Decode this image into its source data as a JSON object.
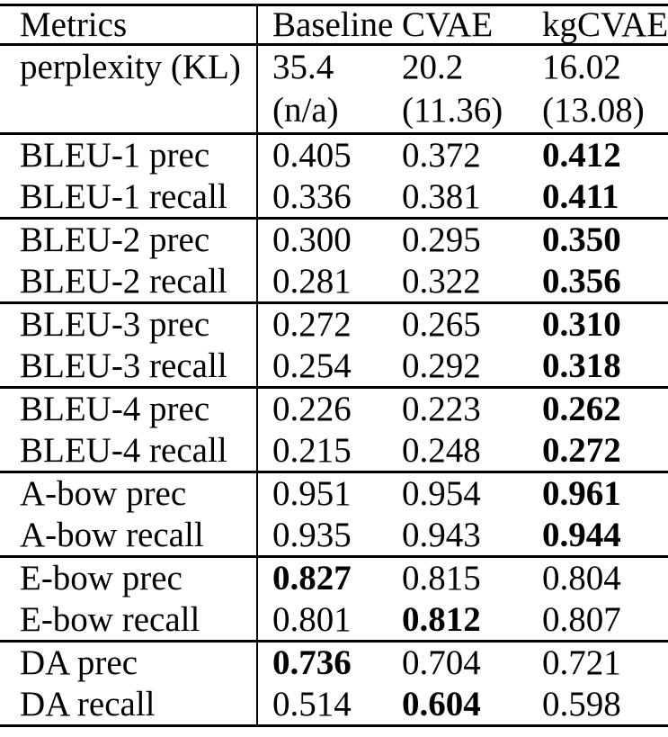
{
  "table": {
    "header": {
      "metric_col": "Metrics",
      "columns": [
        "Baseline",
        "CVAE",
        "kgCVAE"
      ]
    },
    "groups": [
      {
        "name": "perplexity",
        "rows": [
          {
            "metric": "perplexity (KL)",
            "values": [
              "35.4",
              "20.2",
              "16.02"
            ],
            "bold": [
              false,
              false,
              false
            ]
          },
          {
            "metric": "",
            "values": [
              "(n/a)",
              "(11.36)",
              "(13.08)"
            ],
            "bold": [
              false,
              false,
              false
            ]
          }
        ]
      },
      {
        "name": "bleu-1",
        "rows": [
          {
            "metric": "BLEU-1 prec",
            "values": [
              "0.405",
              "0.372",
              "0.412"
            ],
            "bold": [
              false,
              false,
              true
            ]
          },
          {
            "metric": "BLEU-1 recall",
            "values": [
              "0.336",
              "0.381",
              "0.411"
            ],
            "bold": [
              false,
              false,
              true
            ]
          }
        ]
      },
      {
        "name": "bleu-2",
        "rows": [
          {
            "metric": "BLEU-2 prec",
            "values": [
              "0.300",
              "0.295",
              "0.350"
            ],
            "bold": [
              false,
              false,
              true
            ]
          },
          {
            "metric": "BLEU-2 recall",
            "values": [
              "0.281",
              "0.322",
              "0.356"
            ],
            "bold": [
              false,
              false,
              true
            ]
          }
        ]
      },
      {
        "name": "bleu-3",
        "rows": [
          {
            "metric": "BLEU-3 prec",
            "values": [
              "0.272",
              "0.265",
              "0.310"
            ],
            "bold": [
              false,
              false,
              true
            ]
          },
          {
            "metric": "BLEU-3 recall",
            "values": [
              "0.254",
              "0.292",
              "0.318"
            ],
            "bold": [
              false,
              false,
              true
            ]
          }
        ]
      },
      {
        "name": "bleu-4",
        "rows": [
          {
            "metric": "BLEU-4 prec",
            "values": [
              "0.226",
              "0.223",
              "0.262"
            ],
            "bold": [
              false,
              false,
              true
            ]
          },
          {
            "metric": "BLEU-4 recall",
            "values": [
              "0.215",
              "0.248",
              "0.272"
            ],
            "bold": [
              false,
              false,
              true
            ]
          }
        ]
      },
      {
        "name": "a-bow",
        "rows": [
          {
            "metric": "A-bow prec",
            "values": [
              "0.951",
              "0.954",
              "0.961"
            ],
            "bold": [
              false,
              false,
              true
            ]
          },
          {
            "metric": "A-bow recall",
            "values": [
              "0.935",
              "0.943",
              "0.944"
            ],
            "bold": [
              false,
              false,
              true
            ]
          }
        ]
      },
      {
        "name": "e-bow",
        "rows": [
          {
            "metric": "E-bow prec",
            "values": [
              "0.827",
              "0.815",
              "0.804"
            ],
            "bold": [
              true,
              false,
              false
            ]
          },
          {
            "metric": "E-bow recall",
            "values": [
              "0.801",
              "0.812",
              "0.807"
            ],
            "bold": [
              false,
              true,
              false
            ]
          }
        ]
      },
      {
        "name": "da",
        "rows": [
          {
            "metric": "DA prec",
            "values": [
              "0.736",
              "0.704",
              "0.721"
            ],
            "bold": [
              true,
              false,
              false
            ]
          },
          {
            "metric": "DA recall",
            "values": [
              "0.514",
              "0.604",
              "0.598"
            ],
            "bold": [
              false,
              true,
              false
            ]
          }
        ]
      }
    ],
    "colors": {
      "text": "#000000",
      "background": "#ffffff",
      "rule": "#000000"
    }
  }
}
